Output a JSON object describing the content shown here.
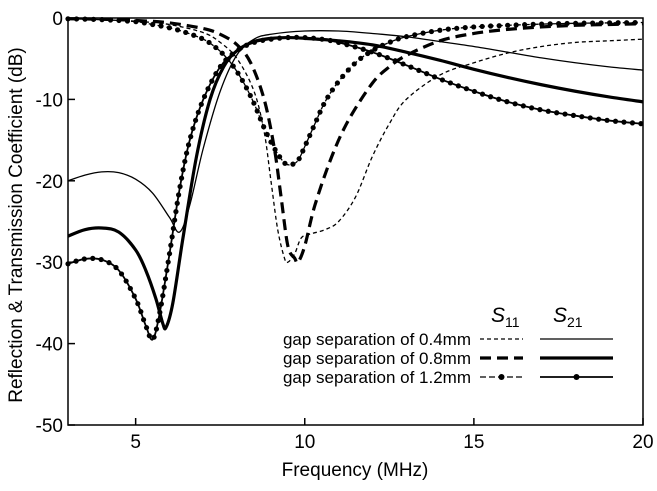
{
  "chart_data": {
    "type": "line",
    "xlabel": "Frequency (MHz)",
    "ylabel": "Reflection & Transmission Coefficient (dB)",
    "xlim": [
      3,
      20
    ],
    "ylim": [
      -50,
      0
    ],
    "xticks": [
      "5",
      "10",
      "15",
      "20"
    ],
    "yticks": [
      "0",
      "-10",
      "-20",
      "-30",
      "-40",
      "-50"
    ],
    "grid": false,
    "legend_position": "bottom-right",
    "legend": {
      "s11_header": "S",
      "s11_sub": "11",
      "s21_header": "S",
      "s21_sub": "21",
      "rows": [
        "gap separation of 0.4mm",
        "gap separation of 0.8mm",
        "gap separation of 1.2mm"
      ]
    },
    "series": [
      {
        "gap": "0.4mm",
        "param": "S11",
        "style": "thin-dashed",
        "x": [
          3,
          4,
          5,
          6,
          7,
          7.5,
          8,
          8.5,
          8.8,
          9.0,
          9.2,
          9.4,
          9.5,
          9.7,
          9.9,
          10.2,
          10.6,
          11,
          11.5,
          12,
          12.5,
          13,
          14,
          15,
          16,
          17,
          18,
          19,
          20
        ],
        "y": [
          -0.1,
          -0.2,
          -0.4,
          -0.8,
          -1.8,
          -3,
          -5,
          -9,
          -14,
          -20,
          -26,
          -29.5,
          -30,
          -29,
          -27,
          -26.5,
          -26,
          -25,
          -22,
          -17,
          -13,
          -10,
          -7,
          -5.5,
          -4.3,
          -3.5,
          -3,
          -2.8,
          -2.6
        ]
      },
      {
        "gap": "0.4mm",
        "param": "S21",
        "style": "thin-solid",
        "x": [
          3,
          3.5,
          4,
          4.5,
          5,
          5.5,
          6,
          6.3,
          6.6,
          7,
          7.5,
          8,
          8.5,
          9,
          10,
          11,
          12,
          13,
          14,
          15,
          16,
          17,
          18,
          19,
          20
        ],
        "y": [
          -20,
          -19.3,
          -18.9,
          -19,
          -19.8,
          -21.5,
          -24.5,
          -26.3,
          -23,
          -16,
          -9,
          -4.5,
          -2.6,
          -2,
          -1.6,
          -1.6,
          -1.9,
          -2.3,
          -2.9,
          -3.5,
          -4.2,
          -4.9,
          -5.5,
          -6,
          -6.4
        ]
      },
      {
        "gap": "0.8mm",
        "param": "S11",
        "style": "thick-dashed",
        "x": [
          3,
          4,
          5,
          6,
          7,
          7.5,
          8,
          8.4,
          8.8,
          9.1,
          9.3,
          9.5,
          9.7,
          9.8,
          10.0,
          10.3,
          10.8,
          11.3,
          12,
          12.5,
          13,
          14,
          15,
          16,
          17,
          18,
          19,
          20
        ],
        "y": [
          -0.1,
          -0.15,
          -0.3,
          -0.6,
          -1.3,
          -2,
          -3.3,
          -5.5,
          -10,
          -16,
          -22,
          -28,
          -29.5,
          -30,
          -28,
          -23,
          -17,
          -12.5,
          -8,
          -6,
          -4.6,
          -2.8,
          -1.9,
          -1.4,
          -1.1,
          -0.9,
          -0.8,
          -0.7
        ]
      },
      {
        "gap": "0.8mm",
        "param": "S21",
        "style": "thick-solid",
        "x": [
          3,
          3.5,
          4,
          4.5,
          5,
          5.3,
          5.6,
          5.8,
          5.9,
          6.1,
          6.4,
          6.8,
          7.2,
          7.6,
          8,
          8.5,
          9,
          9.5,
          10,
          11,
          12,
          13,
          14,
          15,
          16,
          17,
          18,
          19,
          20
        ],
        "y": [
          -26.8,
          -26,
          -25.8,
          -26.3,
          -28.5,
          -31,
          -34.5,
          -37.5,
          -38,
          -35,
          -27,
          -17,
          -10,
          -6,
          -4,
          -2.9,
          -2.5,
          -2.4,
          -2.5,
          -2.8,
          -3.3,
          -4.2,
          -5.2,
          -6.3,
          -7.3,
          -8.2,
          -9,
          -9.7,
          -10.3
        ]
      },
      {
        "gap": "1.2mm",
        "param": "S11",
        "style": "dashed-dots",
        "x": [
          3,
          4,
          5,
          5.5,
          6,
          6.5,
          7,
          7.3,
          7.6,
          7.9,
          8.2,
          8.5,
          8.8,
          9.1,
          9.4,
          9.6,
          9.8,
          10.0,
          10.3,
          10.6,
          11,
          11.5,
          12,
          12.5,
          13,
          14,
          15,
          16,
          17,
          18,
          19,
          20
        ],
        "y": [
          -0.1,
          -0.2,
          -0.45,
          -0.8,
          -1.2,
          -1.8,
          -2.6,
          -3.4,
          -4.5,
          -6,
          -8,
          -10.5,
          -13.5,
          -16,
          -17.8,
          -18,
          -17.5,
          -15.8,
          -13,
          -10.3,
          -7.8,
          -5.5,
          -4,
          -3,
          -2.3,
          -1.5,
          -1.1,
          -0.9,
          -0.75,
          -0.65,
          -0.6,
          -0.55
        ]
      },
      {
        "gap": "1.2mm",
        "param": "S21",
        "style": "solid-dots",
        "x": [
          3,
          3.5,
          4,
          4.5,
          5,
          5.3,
          5.5,
          5.7,
          6,
          6.3,
          6.6,
          7,
          7.5,
          8,
          8.5,
          9,
          9.5,
          10,
          10.5,
          11,
          12,
          13,
          14,
          15,
          16,
          17,
          18,
          19,
          20
        ],
        "y": [
          -30.2,
          -29.6,
          -29.7,
          -31,
          -34.5,
          -37.8,
          -39.5,
          -36.5,
          -29,
          -21,
          -15,
          -10,
          -6,
          -4,
          -3,
          -2.6,
          -2.4,
          -2.4,
          -2.6,
          -3,
          -4.2,
          -5.8,
          -7.5,
          -9,
          -10.3,
          -11.3,
          -12,
          -12.6,
          -13
        ]
      }
    ]
  }
}
